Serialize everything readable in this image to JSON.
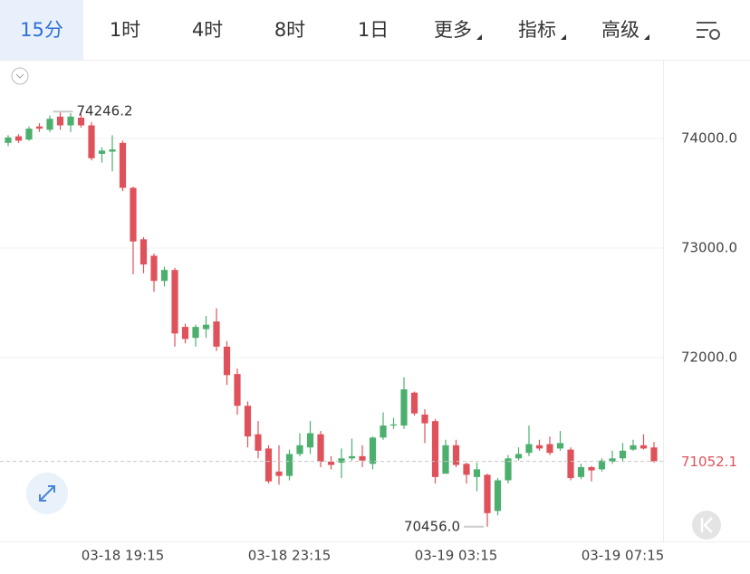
{
  "toolbar": {
    "tabs": [
      "15分",
      "1时",
      "4时",
      "8时",
      "1日",
      "更多",
      "指标",
      "高级"
    ],
    "active": 0,
    "dropdowns": [
      5,
      6,
      7
    ]
  },
  "chart_data": {
    "type": "candlestick",
    "categories": [
      null,
      null,
      null,
      null,
      null,
      null,
      null,
      null,
      null,
      null,
      null,
      "03-18 19:15",
      null,
      null,
      null,
      null,
      null,
      null,
      null,
      null,
      null,
      null,
      null,
      null,
      null,
      null,
      null,
      "03-18 23:15",
      null,
      null,
      null,
      null,
      null,
      null,
      null,
      null,
      null,
      null,
      null,
      null,
      null,
      null,
      null,
      "03-19 03:15",
      null,
      null,
      null,
      null,
      null,
      null,
      null,
      null,
      null,
      null,
      null,
      null,
      null,
      null,
      null,
      "03-19 07:15",
      null,
      null,
      null
    ],
    "open": [
      73960,
      74020,
      73990,
      74110,
      74080,
      74200,
      74120,
      74190,
      74120,
      73860,
      73880,
      73960,
      73550,
      73080,
      72930,
      72700,
      72800,
      72280,
      72180,
      72260,
      72330,
      72100,
      71850,
      71560,
      71300,
      71170,
      70960,
      70920,
      71120,
      71180,
      71300,
      71050,
      71040,
      71080,
      71100,
      71030,
      71270,
      71380,
      71380,
      71680,
      71480,
      71420,
      70940,
      71200,
      71030,
      70910,
      70930,
      70600,
      70880,
      71080,
      71130,
      71200,
      71210,
      71170,
      71160,
      70910,
      71000,
      70980,
      71050,
      71080,
      71160,
      71200,
      71180
    ],
    "high": [
      74030,
      74040,
      74110,
      74140,
      74210,
      74246.2,
      74230,
      74220,
      74150,
      73920,
      74030,
      73980,
      73560,
      73100,
      72950,
      72830,
      72820,
      72310,
      72300,
      72380,
      72450,
      72150,
      71900,
      71600,
      71420,
      71200,
      71200,
      71160,
      71310,
      71420,
      71330,
      71100,
      71170,
      71260,
      71200,
      71280,
      71500,
      71450,
      71820,
      71690,
      71530,
      71440,
      71250,
      71250,
      71040,
      71040,
      70940,
      70900,
      71110,
      71180,
      71380,
      71250,
      71280,
      71330,
      71180,
      71030,
      71010,
      71080,
      71150,
      71220,
      71250,
      71300,
      71230
    ],
    "low": [
      73930,
      73960,
      73980,
      74060,
      74060,
      74080,
      74060,
      74100,
      73800,
      73780,
      73700,
      73520,
      72760,
      72770,
      72600,
      72650,
      72100,
      72130,
      72100,
      72180,
      72060,
      71750,
      71480,
      71180,
      71080,
      70850,
      70840,
      70880,
      71100,
      71120,
      71000,
      70980,
      70900,
      71060,
      71000,
      70980,
      71250,
      71350,
      71350,
      71470,
      71220,
      70850,
      70940,
      71000,
      70850,
      70780,
      70456.0,
      70560,
      70850,
      71060,
      71100,
      71150,
      71110,
      71150,
      70880,
      70890,
      70870,
      70960,
      71030,
      71050,
      71150,
      71160,
      71040
    ],
    "close": [
      74010,
      73980,
      74090,
      74090,
      74180,
      74120,
      74200,
      74120,
      73820,
      73890,
      73900,
      73550,
      73060,
      72850,
      72700,
      72800,
      72220,
      72170,
      72280,
      72300,
      72100,
      71840,
      71560,
      71280,
      71150,
      70870,
      70920,
      71120,
      71200,
      71310,
      71050,
      71020,
      71080,
      71100,
      71060,
      71270,
      71380,
      71390,
      71710,
      71490,
      71400,
      70910,
      71200,
      71020,
      70930,
      70980,
      70580,
      70880,
      71080,
      71120,
      71210,
      71170,
      71130,
      71220,
      70900,
      71000,
      70970,
      71060,
      71080,
      71150,
      71200,
      71170,
      71052.1
    ],
    "up_color": "#4caf6e",
    "down_color": "#e0525b",
    "ylim": [
      70322,
      74719
    ],
    "yticks": [
      {
        "value": 72000,
        "label": "72000.0"
      },
      {
        "value": 73000,
        "label": "73000.0"
      },
      {
        "value": 74000,
        "label": "74000.0"
      }
    ],
    "grid": true,
    "high_label": {
      "value": 74246.2,
      "label": "74246.2"
    },
    "low_label": {
      "value": 70456.0,
      "label": "70456.0"
    },
    "last_price_label": {
      "value": 71052.1,
      "label": "71052.1"
    }
  }
}
